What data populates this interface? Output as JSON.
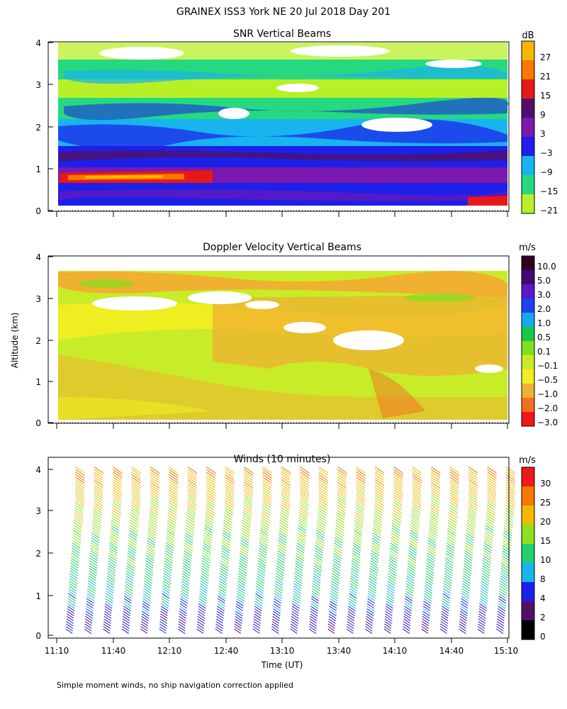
{
  "page_title": "GRAINEX ISS3 York NE  20 Jul 2018 Day 201",
  "y_axis_label": "Altitude (km)",
  "x_axis_label": "Time (UT)",
  "footnote": "Simple moment winds, no ship navigation correction applied",
  "panels": {
    "snr": {
      "title": "SNR Vertical Beams",
      "unit": "dB",
      "colorbar_labels": [
        "27",
        "21",
        "15",
        "9",
        "3",
        "−3",
        "−9",
        "−15",
        "−21"
      ]
    },
    "doppler": {
      "title": "Doppler Velocity Vertical Beams",
      "unit": "m/s",
      "colorbar_labels": [
        "10.0",
        "5.0",
        "3.0",
        "2.0",
        "1.0",
        "0.5",
        "0.1",
        "−0.1",
        "−0.5",
        "−1.0",
        "−2.0",
        "−3.0"
      ]
    },
    "winds": {
      "title": "Winds (10 minutes)",
      "unit": "m/s",
      "colorbar_labels": [
        "30",
        "25",
        "20",
        "15",
        "10",
        "8",
        "4",
        "2",
        "0"
      ]
    }
  },
  "chart_data": [
    {
      "type": "heatmap",
      "title": "SNR Vertical Beams",
      "unit": "dB",
      "x_range_ut": [
        "11:10",
        "15:10"
      ],
      "ylim_km": [
        0,
        4
      ],
      "y_ticks": [
        "0",
        "1",
        "2",
        "3",
        "4"
      ],
      "colorbar_levels": [
        27,
        21,
        15,
        9,
        3,
        -3,
        -9,
        -15,
        -21
      ],
      "colors": [
        "#f5b800",
        "#f57800",
        "#e81818",
        "#50106a",
        "#7a18b0",
        "#1c20e8",
        "#18b4f0",
        "#26d880",
        "#b8f028"
      ],
      "layers": [
        {
          "alt_km": [
            0.1,
            0.55
          ],
          "snr_db": -3
        },
        {
          "alt_km": [
            0.55,
            0.7
          ],
          "snr_db": 9
        },
        {
          "alt_km": [
            0.7,
            0.9
          ],
          "snr_db": 15,
          "time_extent": [
            "11:10",
            "12:10"
          ]
        },
        {
          "alt_km": [
            0.9,
            1.3
          ],
          "snr_db": 3
        },
        {
          "alt_km": [
            1.3,
            2.0
          ],
          "snr_db": -3
        },
        {
          "alt_km": [
            2.0,
            2.5
          ],
          "snr_db": -9
        },
        {
          "alt_km": [
            2.5,
            3.2
          ],
          "snr_db": -15
        },
        {
          "alt_km": [
            3.2,
            3.6
          ],
          "snr_db": -21
        }
      ]
    },
    {
      "type": "heatmap",
      "title": "Doppler Velocity Vertical Beams",
      "unit": "m/s",
      "x_range_ut": [
        "11:10",
        "15:10"
      ],
      "ylim_km": [
        0,
        4
      ],
      "y_ticks": [
        "0",
        "1",
        "2",
        "3",
        "4"
      ],
      "colorbar_levels": [
        10.0,
        5.0,
        3.0,
        2.0,
        1.0,
        0.5,
        0.1,
        -0.1,
        -0.5,
        -1.0,
        -2.0,
        -3.0
      ],
      "colors": [
        "#300020",
        "#400a70",
        "#5a18c8",
        "#2040f0",
        "#18a8f0",
        "#18c848",
        "#80e020",
        "#c8ec28",
        "#eeee20",
        "#f0b030",
        "#f07020",
        "#f01818"
      ],
      "dominant_values_m_s": [
        -0.1,
        -0.5,
        0.1
      ]
    },
    {
      "type": "wind_barbs",
      "title": "Winds (10 minutes)",
      "unit": "m/s",
      "x_ticks": [
        "11:10",
        "11:40",
        "12:10",
        "12:40",
        "13:10",
        "13:40",
        "14:10",
        "14:40",
        "15:10"
      ],
      "y_ticks": [
        "0",
        "1",
        "2",
        "3",
        "4"
      ],
      "ylim_km": [
        0,
        4.2
      ],
      "colorbar_levels": [
        30,
        25,
        20,
        15,
        10,
        8,
        4,
        2,
        0
      ],
      "colors": [
        "#f01818",
        "#f57800",
        "#f5b800",
        "#90e020",
        "#20d070",
        "#18b4f0",
        "#1c20e8",
        "#50106a",
        "#000000"
      ],
      "profile_times_ut": [
        "11:10",
        "11:20",
        "11:30",
        "11:40",
        "11:50",
        "12:00",
        "12:10",
        "12:20",
        "12:30",
        "12:40",
        "12:50",
        "13:00",
        "13:10",
        "13:20",
        "13:30",
        "13:40",
        "13:50",
        "14:00",
        "14:10",
        "14:20",
        "14:30",
        "14:40",
        "14:50",
        "15:00"
      ],
      "speed_profile_km_ms": [
        [
          0.2,
          4
        ],
        [
          0.6,
          6
        ],
        [
          1.0,
          10
        ],
        [
          1.5,
          12
        ],
        [
          2.0,
          14
        ],
        [
          2.5,
          16
        ],
        [
          3.0,
          19
        ],
        [
          3.5,
          22
        ],
        [
          4.0,
          26
        ]
      ]
    }
  ]
}
